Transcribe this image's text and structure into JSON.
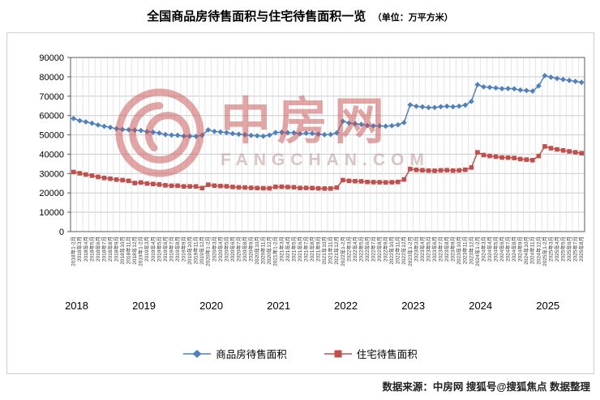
{
  "title": "全国商品房待售面积与住宅待售面积一览",
  "title_unit": "（单位：万平方米）",
  "source": "数据来源：中房网 搜狐号@搜狐焦点 数据整理",
  "watermark": {
    "name": "中房网",
    "domain": "FANGCHAN.COM"
  },
  "colors": {
    "series1": "#4f81bd",
    "series2": "#c0504d",
    "gridline": "#c9c9c9",
    "axis": "#595959"
  },
  "legend": [
    {
      "label": "商品房待售面积",
      "color": "#4f81bd",
      "marker": "diamond"
    },
    {
      "label": "住宅待售面积",
      "color": "#c0504d",
      "marker": "square"
    }
  ],
  "chart_data": {
    "type": "line",
    "title": "全国商品房待售面积与住宅待售面积一览（单位：万平方米）",
    "xlabel": "",
    "ylabel": "",
    "ylim": [
      0,
      90000
    ],
    "ytick_interval": 10000,
    "grid": true,
    "legend_position": "bottom",
    "years": [
      2018,
      2019,
      2020,
      2021,
      2022,
      2023,
      2024,
      2025
    ],
    "categories": [
      "2018年1-2月",
      "2018年3月",
      "2018年4月",
      "2018年5月",
      "2018年6月",
      "2018年7月",
      "2018年8月",
      "2018年9月",
      "2018年10月",
      "2018年11月",
      "2018年12月",
      "2019年1-2月",
      "2019年3月",
      "2019年4月",
      "2019年5月",
      "2019年6月",
      "2019年7月",
      "2019年8月",
      "2019年9月",
      "2019年10月",
      "2019年11月",
      "2019年12月",
      "2020年1-2月",
      "2020年3月",
      "2020年4月",
      "2020年5月",
      "2020年6月",
      "2020年7月",
      "2020年8月",
      "2020年9月",
      "2020年10月",
      "2020年11月",
      "2020年12月",
      "2021年1-2月",
      "2021年3月",
      "2021年4月",
      "2021年5月",
      "2021年6月",
      "2021年7月",
      "2021年8月",
      "2021年9月",
      "2021年10月",
      "2021年11月",
      "2021年12月",
      "2022年1-2月",
      "2022年3月",
      "2022年4月",
      "2022年5月",
      "2022年6月",
      "2022年7月",
      "2022年8月",
      "2022年9月",
      "2022年10月",
      "2022年11月",
      "2022年12月",
      "2023年1-2月",
      "2023年3月",
      "2023年4月",
      "2023年5月",
      "2023年6月",
      "2023年7月",
      "2023年8月",
      "2023年9月",
      "2023年10月",
      "2023年11月",
      "2023年12月",
      "2024年1-2月",
      "2024年3月",
      "2024年4月",
      "2024年5月",
      "2024年6月",
      "2024年7月",
      "2024年8月",
      "2024年9月",
      "2024年10月",
      "2024年11月",
      "2024年12月",
      "2025年1-2月",
      "2025年3月",
      "2025年4月",
      "2025年5月",
      "2025年6月",
      "2025年7月",
      "2025年8月"
    ],
    "series": [
      {
        "name": "商品房待售面积",
        "color": "#4f81bd",
        "marker": "diamond",
        "values": [
          58468,
          57329,
          56730,
          56010,
          55083,
          54428,
          53873,
          53191,
          52789,
          52627,
          52414,
          52251,
          51646,
          51380,
          50928,
          50162,
          49876,
          49784,
          49346,
          49323,
          49221,
          49821,
          52563,
          51779,
          51511,
          51184,
          50662,
          50323,
          50052,
          49707,
          49492,
          49287,
          49850,
          51208,
          51352,
          51135,
          51087,
          50545,
          50864,
          50738,
          50385,
          50093,
          50205,
          51023,
          57026,
          56113,
          55734,
          55433,
          54784,
          54655,
          54605,
          54478,
          54734,
          55203,
          56366,
          65528,
          64770,
          64487,
          64120,
          64159,
          64564,
          64795,
          64537,
          64835,
          65385,
          67295,
          75969,
          74833,
          74553,
          74256,
          73894,
          73926,
          73811,
          73177,
          72920,
          72605,
          75327,
          80621,
          79820,
          79150,
          78650,
          78150,
          77650,
          77150
        ]
      },
      {
        "name": "住宅待售面积",
        "color": "#c0504d",
        "marker": "square",
        "values": [
          30778,
          30130,
          29507,
          28920,
          28260,
          27722,
          27330,
          26869,
          26578,
          26228,
          25091,
          25379,
          24852,
          24610,
          24343,
          23909,
          23691,
          23699,
          23355,
          23347,
          23337,
          22473,
          24224,
          23734,
          23544,
          23404,
          23061,
          22870,
          22783,
          22614,
          22492,
          22418,
          22379,
          23111,
          23183,
          23021,
          22918,
          22525,
          22567,
          22491,
          22348,
          22250,
          22256,
          22761,
          26592,
          26211,
          26067,
          25970,
          25659,
          25564,
          25509,
          25422,
          25508,
          25667,
          26947,
          32371,
          31910,
          31727,
          31526,
          31440,
          31662,
          31754,
          31535,
          31647,
          31951,
          33119,
          40960,
          39568,
          39088,
          38743,
          38297,
          38234,
          38052,
          37488,
          37196,
          36921,
          39088,
          44005,
          43120,
          42480,
          41960,
          41460,
          40980,
          40520
        ]
      }
    ]
  }
}
